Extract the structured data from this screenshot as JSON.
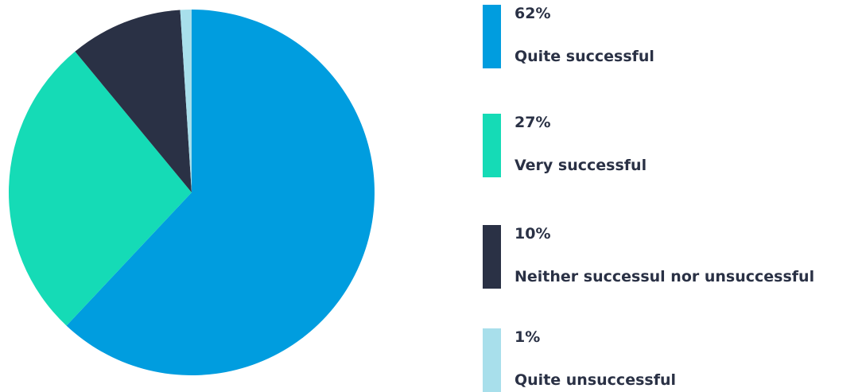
{
  "chart_data": {
    "type": "pie",
    "title": "",
    "categories": [
      "Quite successful",
      "Very successful",
      "Neither successul nor unsuccessful",
      "Quite unsuccessful"
    ],
    "values": [
      62,
      27,
      10,
      1
    ],
    "labels": [
      "62%",
      "27%",
      "10%",
      "1%"
    ],
    "colors": [
      "#009ddf",
      "#15dbb6",
      "#2a3145",
      "#a8dfeb"
    ],
    "legend_placement": "right"
  }
}
